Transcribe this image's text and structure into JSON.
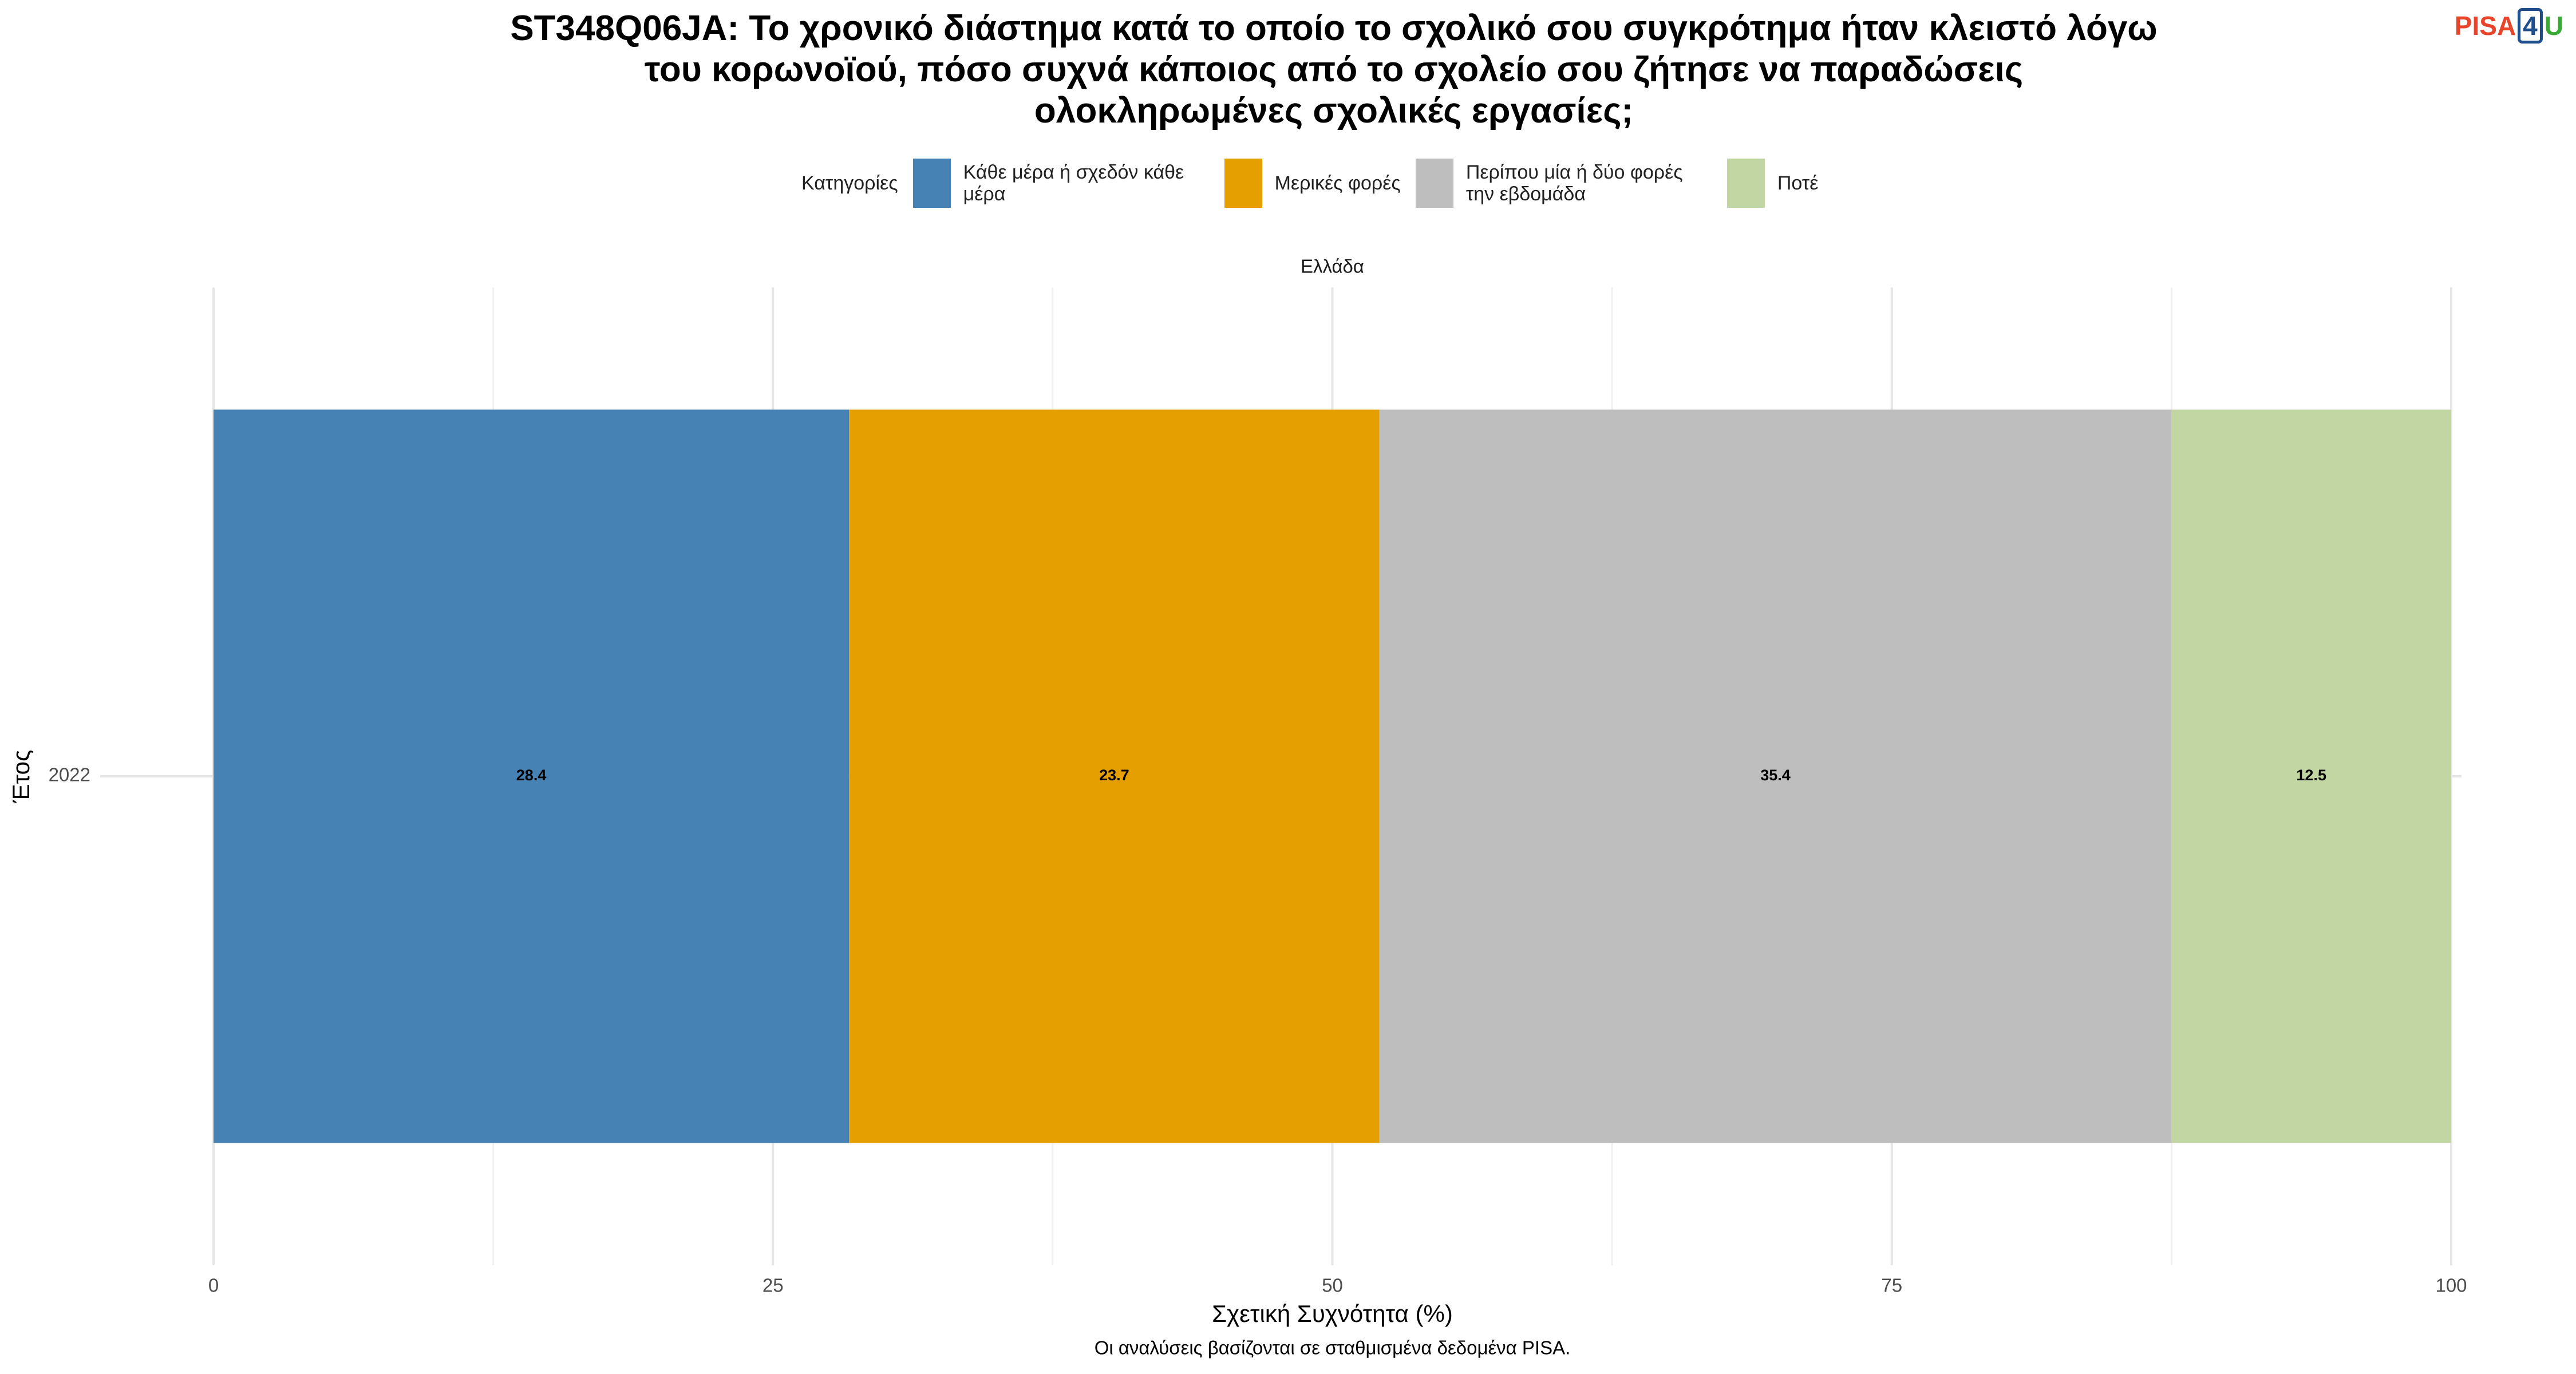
{
  "chart_data": {
    "type": "stacked_bar_horizontal",
    "title": "ST348Q06JA: Το χρονικό διάστημα κατά το οποίο το σχολικό σου συγκρότημα ήταν κλειστό λόγω του κορωνοϊού, πόσο συχνά κάποιος από το σχολείο σου ζήτησε να παραδώσεις ολοκληρωμένες σχολικές εργασίες;",
    "legend_title": "Κατηγορίες",
    "facet_label": "Ελλάδα",
    "categories": [
      "2022"
    ],
    "series": [
      {
        "name": "Κάθε μέρα ή σχεδόν κάθε μέρα",
        "color": "#4682b4",
        "values": [
          28.4
        ]
      },
      {
        "name": "Μερικές φορές",
        "color": "#e69f00",
        "values": [
          23.7
        ]
      },
      {
        "name": "Περίπου μία ή δύο φορές την εβδομάδα",
        "color": "#bebebe",
        "values": [
          35.4
        ]
      },
      {
        "name": "Ποτέ",
        "color": "#c2d6a4",
        "values": [
          12.5
        ]
      }
    ],
    "xlim": [
      0,
      100
    ],
    "xticks": [
      0,
      25,
      50,
      75,
      100
    ],
    "minor_xticks": [
      12.5,
      37.5,
      62.5,
      87.5
    ],
    "grid": true,
    "x_label": "Σχετική Συχνότητα (%)",
    "y_label": "Έτος",
    "caption": "Οι αναλύσεις βασίζονται σε σταθμισμένα δεδομένα PISA.",
    "logo": [
      "PISA",
      "4",
      "U"
    ]
  }
}
